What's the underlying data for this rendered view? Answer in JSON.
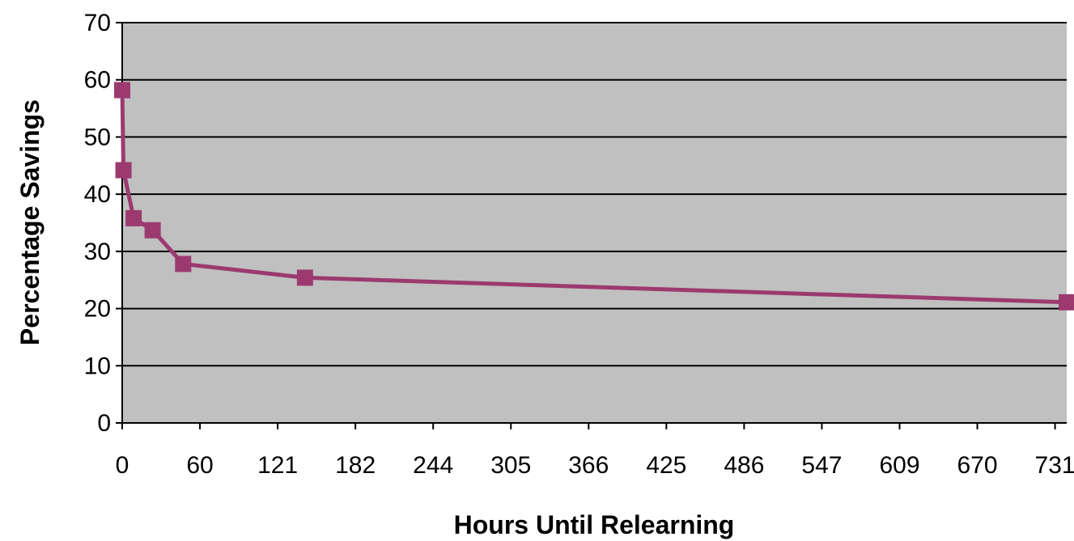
{
  "chart_data": {
    "type": "line",
    "title": "",
    "xlabel": "Hours Until Relearning",
    "ylabel": "Percentage Savings",
    "x_tick_labels": [
      "0",
      "60",
      "121",
      "182",
      "244",
      "305",
      "366",
      "425",
      "486",
      "547",
      "609",
      "670",
      "731"
    ],
    "x_tick_values": [
      0,
      60,
      121,
      182,
      244,
      305,
      366,
      425,
      486,
      547,
      609,
      670,
      731
    ],
    "xlim": [
      0,
      744
    ],
    "ylim": [
      0,
      70
    ],
    "y_ticks": [
      0,
      10,
      20,
      30,
      40,
      50,
      60,
      70
    ],
    "grid": "horizontal",
    "legend": "none",
    "series": [
      {
        "points": [
          {
            "x": 0,
            "y": 58.2
          },
          {
            "x": 1,
            "y": 44.2
          },
          {
            "x": 9,
            "y": 35.8
          },
          {
            "x": 24,
            "y": 33.7
          },
          {
            "x": 48,
            "y": 27.8
          },
          {
            "x": 144,
            "y": 25.4
          },
          {
            "x": 744,
            "y": 21.1
          }
        ],
        "color": "#9c3a6f"
      }
    ],
    "colors": {
      "plot_background": "#c0c0c0",
      "gridline": "#000000",
      "series_line": "#9c3a6f",
      "marker": "#9c3a6f"
    }
  }
}
